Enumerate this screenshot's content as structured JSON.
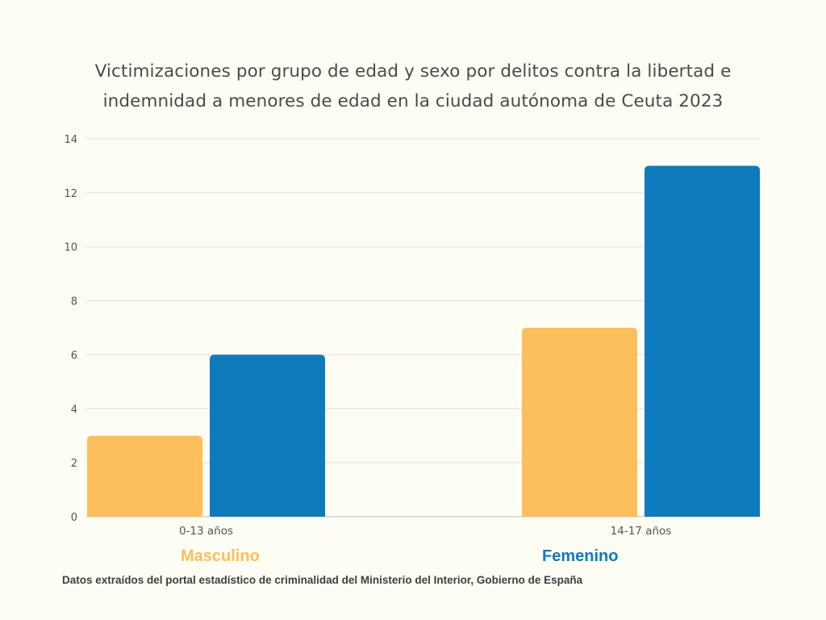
{
  "chart_data": {
    "type": "bar",
    "title_lines": [
      "Victimizaciones por grupo de edad y sexo por delitos contra la libertad e",
      "indemnidad a menores de edad en la ciudad autónoma de Ceuta 2023"
    ],
    "categories": [
      "0-13 años",
      "14-17 años"
    ],
    "series": [
      {
        "name": "Masculino",
        "values": [
          3,
          7
        ],
        "color": "#fdbe5c"
      },
      {
        "name": "Femenino",
        "values": [
          6,
          13
        ],
        "color": "#0e7bbd"
      }
    ],
    "ylim": [
      0,
      14
    ],
    "yticks": [
      0,
      2,
      4,
      6,
      8,
      10,
      12,
      14
    ],
    "grid": true,
    "legend_placement": "bottom"
  },
  "legend": {
    "masculino": "Masculino",
    "femenino": "Femenino"
  },
  "source_note": "Datos extraídos del portal estadístico de criminalidad del Ministerio del Interior, Gobierno de España"
}
